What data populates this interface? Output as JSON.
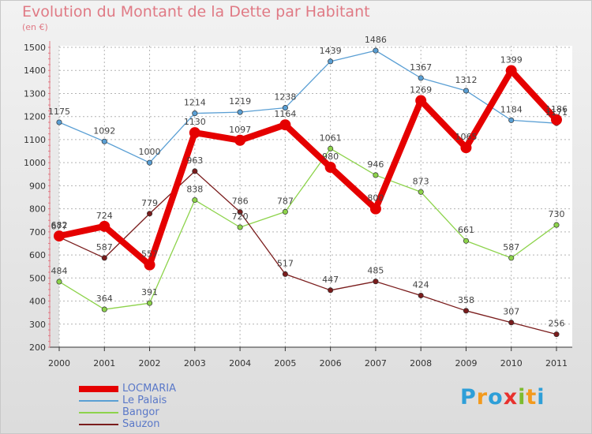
{
  "title": "Evolution du Montant de la Dette par Habitant",
  "subtitle": "(en €)",
  "logo": {
    "letters": [
      "P",
      "r",
      "o",
      "x",
      "i",
      "t",
      "i"
    ],
    "colors": [
      "#2e9fd8",
      "#f39a1d",
      "#2e9fd8",
      "#e8312d",
      "#7dbb2f",
      "#f39a1d",
      "#2e9fd8"
    ]
  },
  "chart_data": {
    "type": "line",
    "x": [
      "2000",
      "2001",
      "2002",
      "2003",
      "2004",
      "2005",
      "2006",
      "2007",
      "2008",
      "2009",
      "2010",
      "2011"
    ],
    "ylim": [
      200,
      1500
    ],
    "yticks": [
      "200",
      "300",
      "400",
      "500",
      "600",
      "700",
      "800",
      "900",
      "1000",
      "1100",
      "1200",
      "1300",
      "1400",
      "1500"
    ],
    "grid": true,
    "legend_position": "bottom-left",
    "series": [
      {
        "name": "LOCMARIA",
        "color": "#e50000",
        "bold": true,
        "values": [
          682,
          724,
          557,
          1130,
          1097,
          1164,
          980,
          800,
          1269,
          1065,
          1399,
          1186
        ]
      },
      {
        "name": "Le Palais",
        "color": "#5a9fd4",
        "bold": false,
        "values": [
          1175,
          1092,
          1000,
          1214,
          1219,
          1238,
          1439,
          1486,
          1367,
          1312,
          1184,
          1171
        ]
      },
      {
        "name": "Bangor",
        "color": "#8dd34b",
        "bold": false,
        "values": [
          484,
          364,
          391,
          838,
          720,
          787,
          1061,
          946,
          873,
          661,
          587,
          730
        ]
      },
      {
        "name": "Sauzon",
        "color": "#7a1c1c",
        "bold": false,
        "values": [
          677,
          587,
          779,
          963,
          786,
          517,
          447,
          485,
          424,
          358,
          307,
          256
        ]
      }
    ],
    "data_labels": [
      [
        "682",
        "724",
        "557",
        "1130",
        "1097",
        "1164",
        "980",
        "800",
        "1269",
        "1065",
        "1399",
        "1186"
      ],
      [
        "1175",
        "1092",
        "1000",
        "1214",
        "1219",
        "1238",
        "1439",
        "1486",
        "1367",
        "1312",
        "1184",
        "1171"
      ],
      [
        "484",
        "364",
        "391",
        "838",
        "720",
        "787",
        "1061",
        "946",
        "873",
        "661",
        "587",
        "730"
      ],
      [
        "677",
        "587",
        "779",
        "963",
        "786",
        "517",
        "447",
        "485",
        "424",
        "358",
        "307",
        "256"
      ]
    ]
  }
}
